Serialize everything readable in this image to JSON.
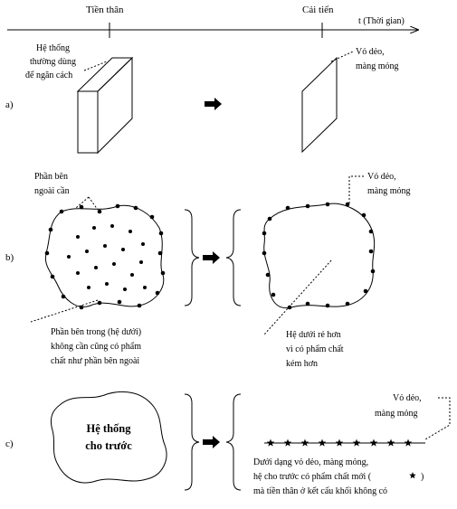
{
  "timeline": {
    "left_label": "Tiền thân",
    "right_label": "Cải tiến",
    "axis_label": "t (Thời gian)"
  },
  "row_a": {
    "tag": "a)",
    "left_label": [
      "Hệ thống",
      "thường dùng",
      "để ngăn cách"
    ],
    "right_label": [
      "Vỏ dẻo,",
      "màng mỏng"
    ]
  },
  "row_b": {
    "tag": "b)",
    "top_left_label": [
      "Phần bên",
      "ngoài cần"
    ],
    "top_right_label": [
      "Vỏ dẻo,",
      "màng mỏng"
    ],
    "bottom_left_label": [
      "Phần bên trong (hệ dưới)",
      "không cần cũng có phẩm",
      "chất như phần bên ngoài"
    ],
    "bottom_right_label": [
      "Hệ dưới rẻ hơn",
      "vì có phẩm chất",
      "kém hơn"
    ]
  },
  "row_c": {
    "tag": "c)",
    "blob_label": [
      "Hệ thống",
      "cho trước"
    ],
    "top_right_label": [
      "Vỏ dẻo,",
      "màng mỏng"
    ],
    "bottom_label": [
      "Dưới dạng vỏ dẻo, màng mỏng,",
      "hệ cho trước có phẩm chất mới (",
      ")",
      "mà tiền thân ở kết cấu khối không có"
    ]
  }
}
